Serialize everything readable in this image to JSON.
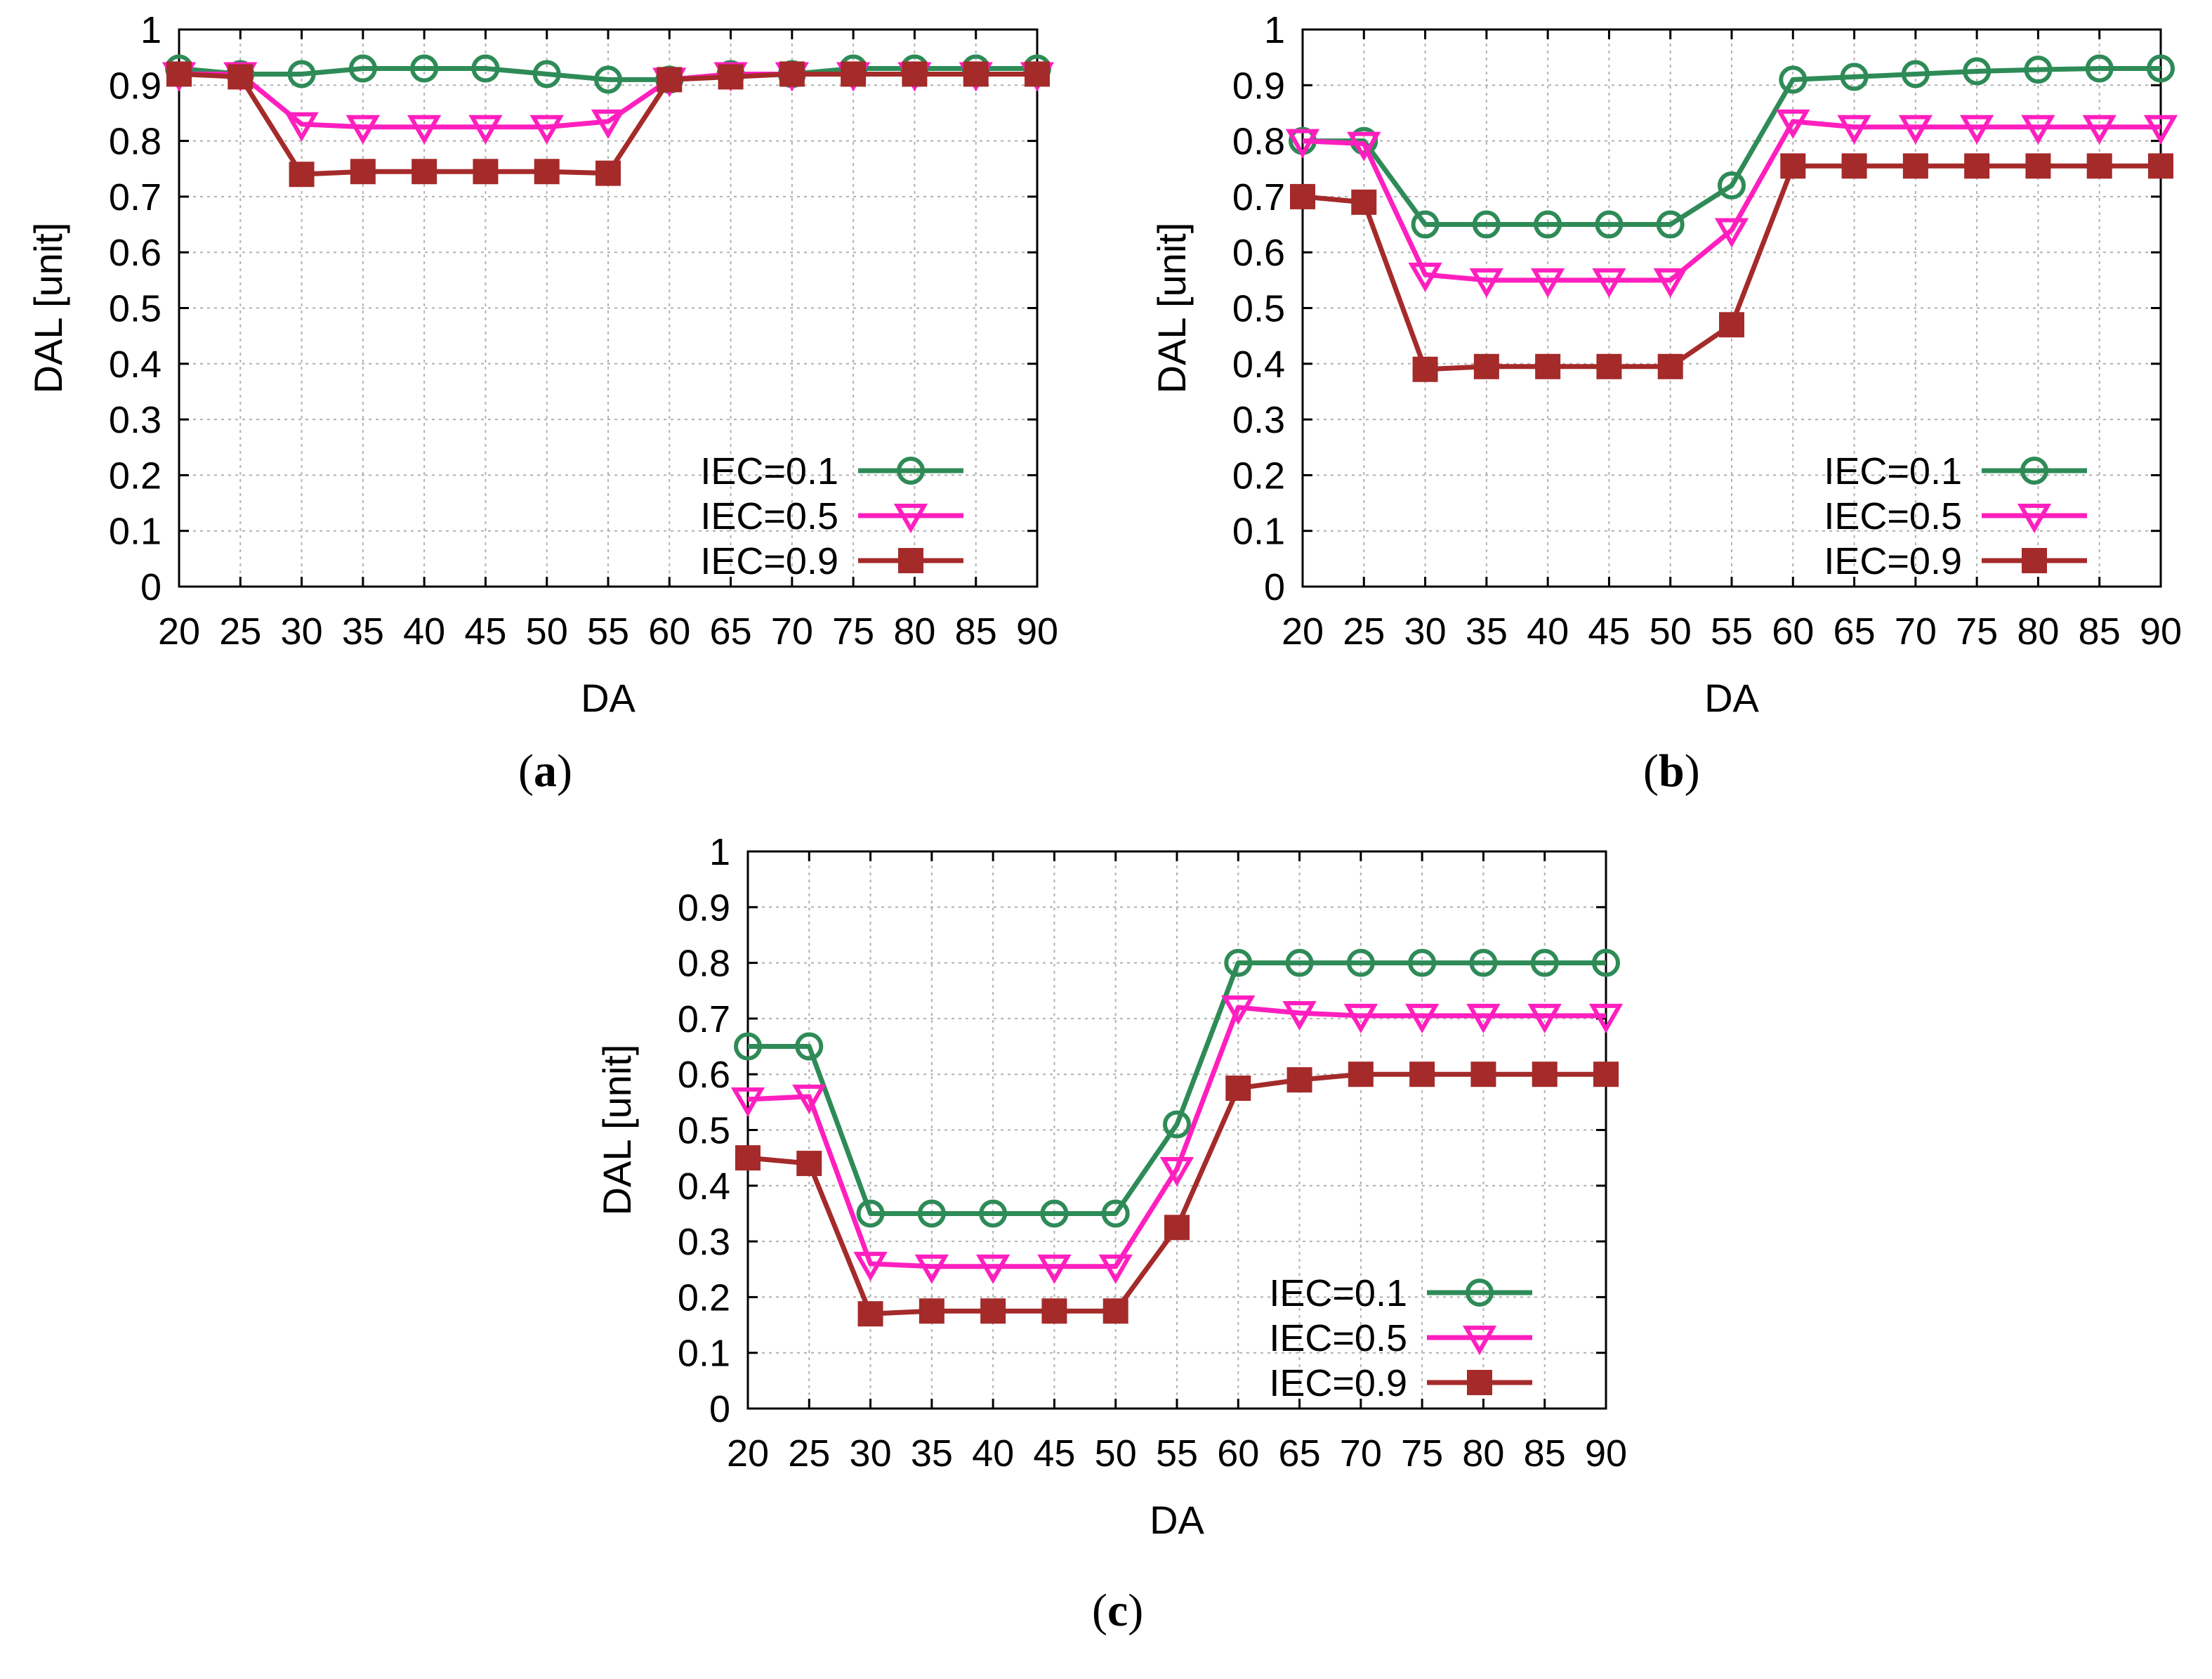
{
  "colors": {
    "iec01": "#2e8b57",
    "iec05": "#ff1fbf",
    "iec09": "#a52a2a",
    "grid": "#b0b0b0",
    "axis": "#000000"
  },
  "chart_data": [
    {
      "id": "a",
      "type": "line",
      "caption_open": "(",
      "caption_letter": "a",
      "caption_close": ")",
      "xlabel": "DA",
      "ylabel": "DAL [unit]",
      "ylim": [
        0,
        1
      ],
      "yticks": [
        "0",
        "0.1",
        "0.2",
        "0.3",
        "0.4",
        "0.5",
        "0.6",
        "0.7",
        "0.8",
        "0.9",
        "1"
      ],
      "grid": true,
      "legend_position": "bottom-right",
      "categories": [
        "20",
        "25",
        "30",
        "35",
        "40",
        "45",
        "50",
        "55",
        "60",
        "65",
        "70",
        "75",
        "80",
        "85",
        "90"
      ],
      "series": [
        {
          "name": "IEC=0.1",
          "marker": "circle",
          "values": [
            0.93,
            0.92,
            0.92,
            0.93,
            0.93,
            0.93,
            0.92,
            0.91,
            0.91,
            0.92,
            0.92,
            0.93,
            0.93,
            0.93,
            0.93
          ]
        },
        {
          "name": "IEC=0.5",
          "marker": "triangle-down",
          "values": [
            0.92,
            0.92,
            0.83,
            0.825,
            0.825,
            0.825,
            0.825,
            0.835,
            0.91,
            0.92,
            0.92,
            0.92,
            0.92,
            0.92,
            0.92
          ]
        },
        {
          "name": "IEC=0.9",
          "marker": "square",
          "values": [
            0.92,
            0.915,
            0.74,
            0.745,
            0.745,
            0.745,
            0.745,
            0.742,
            0.91,
            0.915,
            0.92,
            0.92,
            0.92,
            0.92,
            0.92
          ]
        }
      ]
    },
    {
      "id": "b",
      "type": "line",
      "caption_open": "(",
      "caption_letter": "b",
      "caption_close": ")",
      "xlabel": "DA",
      "ylabel": "DAL [unit]",
      "ylim": [
        0,
        1
      ],
      "yticks": [
        "0",
        "0.1",
        "0.2",
        "0.3",
        "0.4",
        "0.5",
        "0.6",
        "0.7",
        "0.8",
        "0.9",
        "1"
      ],
      "grid": true,
      "legend_position": "bottom-right",
      "categories": [
        "20",
        "25",
        "30",
        "35",
        "40",
        "45",
        "50",
        "55",
        "60",
        "65",
        "70",
        "75",
        "80",
        "85",
        "90"
      ],
      "series": [
        {
          "name": "IEC=0.1",
          "marker": "circle",
          "values": [
            0.8,
            0.8,
            0.65,
            0.65,
            0.65,
            0.65,
            0.65,
            0.72,
            0.91,
            0.915,
            0.92,
            0.925,
            0.928,
            0.93,
            0.93
          ]
        },
        {
          "name": "IEC=0.5",
          "marker": "triangle-down",
          "values": [
            0.8,
            0.795,
            0.56,
            0.55,
            0.55,
            0.55,
            0.55,
            0.64,
            0.835,
            0.825,
            0.825,
            0.825,
            0.825,
            0.825,
            0.825
          ]
        },
        {
          "name": "IEC=0.9",
          "marker": "square",
          "values": [
            0.7,
            0.69,
            0.39,
            0.395,
            0.395,
            0.395,
            0.395,
            0.47,
            0.755,
            0.755,
            0.755,
            0.755,
            0.755,
            0.755,
            0.755
          ]
        }
      ]
    },
    {
      "id": "c",
      "type": "line",
      "caption_open": "(",
      "caption_letter": "c",
      "caption_close": ")",
      "xlabel": "DA",
      "ylabel": "DAL [unit]",
      "ylim": [
        0,
        1
      ],
      "yticks": [
        "0",
        "0.1",
        "0.2",
        "0.3",
        "0.4",
        "0.5",
        "0.6",
        "0.7",
        "0.8",
        "0.9",
        "1"
      ],
      "grid": true,
      "legend_position": "bottom-right",
      "categories": [
        "20",
        "25",
        "30",
        "35",
        "40",
        "45",
        "50",
        "55",
        "60",
        "65",
        "70",
        "75",
        "80",
        "85",
        "90"
      ],
      "series": [
        {
          "name": "IEC=0.1",
          "marker": "circle",
          "values": [
            0.65,
            0.65,
            0.35,
            0.35,
            0.35,
            0.35,
            0.35,
            0.51,
            0.8,
            0.8,
            0.8,
            0.8,
            0.8,
            0.8,
            0.8
          ]
        },
        {
          "name": "IEC=0.5",
          "marker": "triangle-down",
          "values": [
            0.555,
            0.56,
            0.26,
            0.255,
            0.255,
            0.255,
            0.255,
            0.43,
            0.72,
            0.71,
            0.705,
            0.705,
            0.705,
            0.705,
            0.705
          ]
        },
        {
          "name": "IEC=0.9",
          "marker": "square",
          "values": [
            0.45,
            0.44,
            0.17,
            0.175,
            0.175,
            0.175,
            0.175,
            0.325,
            0.575,
            0.59,
            0.6,
            0.6,
            0.6,
            0.6,
            0.6
          ]
        }
      ]
    }
  ]
}
